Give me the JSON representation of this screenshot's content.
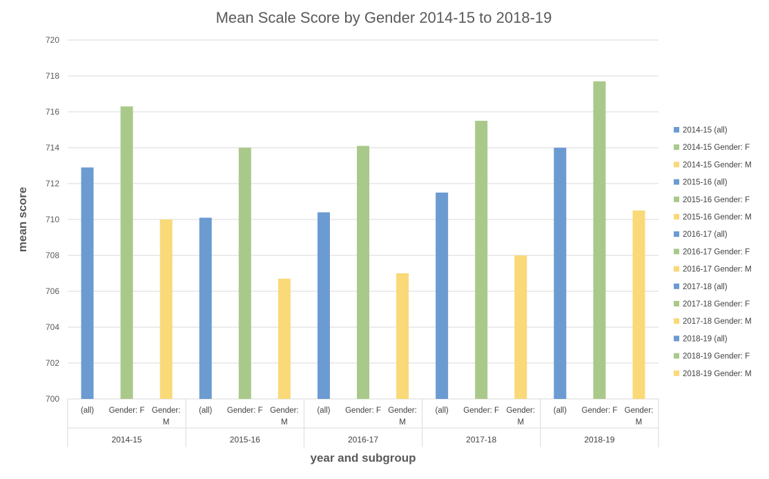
{
  "chart_data": {
    "type": "bar",
    "title": "Mean Scale Score by Gender 2014-15 to 2018-19",
    "xlabel": "year and subgroup",
    "ylabel": "mean score",
    "ylim": [
      700,
      720
    ],
    "y_ticks": [
      "700",
      "702",
      "704",
      "706",
      "708",
      "710",
      "712",
      "714",
      "716",
      "718",
      "720"
    ],
    "grid": true,
    "legend_position": "right",
    "colors": {
      "all": "#6b9bd1",
      "female": "#a9c98a",
      "male": "#f9d978"
    },
    "groups": [
      {
        "label": "2014-15",
        "bars": [
          {
            "category": [
              "(all)"
            ],
            "series": "2014-15 (all)",
            "value": 712.9,
            "kind": "all"
          },
          {
            "category": [
              "Gender: F"
            ],
            "series": "2014-15 Gender: F",
            "value": 716.3,
            "kind": "female"
          },
          {
            "category": [
              "Gender:",
              "M"
            ],
            "series": "2014-15 Gender: M",
            "value": 710.0,
            "kind": "male"
          }
        ]
      },
      {
        "label": "2015-16",
        "bars": [
          {
            "category": [
              "(all)"
            ],
            "series": "2015-16 (all)",
            "value": 710.1,
            "kind": "all"
          },
          {
            "category": [
              "Gender: F"
            ],
            "series": "2015-16 Gender: F",
            "value": 714.0,
            "kind": "female"
          },
          {
            "category": [
              "Gender:",
              "M"
            ],
            "series": "2015-16 Gender: M",
            "value": 706.7,
            "kind": "male"
          }
        ]
      },
      {
        "label": "2016-17",
        "bars": [
          {
            "category": [
              "(all)"
            ],
            "series": "2016-17 (all)",
            "value": 710.4,
            "kind": "all"
          },
          {
            "category": [
              "Gender: F"
            ],
            "series": "2016-17 Gender: F",
            "value": 714.1,
            "kind": "female"
          },
          {
            "category": [
              "Gender:",
              "M"
            ],
            "series": "2016-17 Gender: M",
            "value": 707.0,
            "kind": "male"
          }
        ]
      },
      {
        "label": "2017-18",
        "bars": [
          {
            "category": [
              "(all)"
            ],
            "series": "2017-18 (all)",
            "value": 711.5,
            "kind": "all"
          },
          {
            "category": [
              "Gender: F"
            ],
            "series": "2017-18 Gender: F",
            "value": 715.5,
            "kind": "female"
          },
          {
            "category": [
              "Gender:",
              "M"
            ],
            "series": "2017-18 Gender: M",
            "value": 708.0,
            "kind": "male"
          }
        ]
      },
      {
        "label": "2018-19",
        "bars": [
          {
            "category": [
              "(all)"
            ],
            "series": "2018-19 (all)",
            "value": 714.0,
            "kind": "all"
          },
          {
            "category": [
              "Gender: F"
            ],
            "series": "2018-19 Gender: F",
            "value": 717.7,
            "kind": "female"
          },
          {
            "category": [
              "Gender:",
              "M"
            ],
            "series": "2018-19 Gender: M",
            "value": 710.5,
            "kind": "male"
          }
        ]
      }
    ],
    "legend": [
      {
        "label": "2014-15 (all)",
        "kind": "all"
      },
      {
        "label": "2014-15 Gender: F",
        "kind": "female"
      },
      {
        "label": "2014-15 Gender: M",
        "kind": "male"
      },
      {
        "label": "2015-16 (all)",
        "kind": "all"
      },
      {
        "label": "2015-16 Gender: F",
        "kind": "female"
      },
      {
        "label": "2015-16 Gender: M",
        "kind": "male"
      },
      {
        "label": "2016-17 (all)",
        "kind": "all"
      },
      {
        "label": "2016-17 Gender: F",
        "kind": "female"
      },
      {
        "label": "2016-17 Gender: M",
        "kind": "male"
      },
      {
        "label": "2017-18 (all)",
        "kind": "all"
      },
      {
        "label": "2017-18 Gender: F",
        "kind": "female"
      },
      {
        "label": "2017-18 Gender: M",
        "kind": "male"
      },
      {
        "label": "2018-19 (all)",
        "kind": "all"
      },
      {
        "label": "2018-19 Gender: F",
        "kind": "female"
      },
      {
        "label": "2018-19 Gender: M",
        "kind": "male"
      }
    ]
  }
}
